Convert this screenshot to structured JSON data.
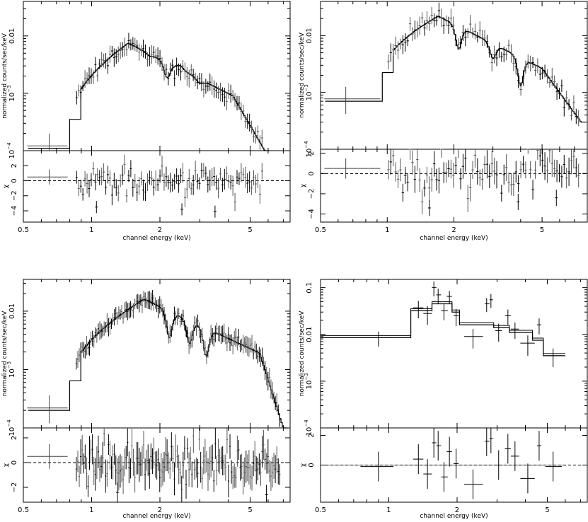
{
  "chart_data": [
    {
      "type": "scatter",
      "xscale": "log",
      "xlim": [
        0.5,
        7.5
      ],
      "top": {
        "ylabel": "normalized counts/sec/keV",
        "yscale": "log",
        "ylim": [
          0.0001,
          0.04
        ],
        "yticks": [
          {
            "v": 0.0001,
            "base": "10",
            "exp": "−4"
          },
          {
            "v": 0.001,
            "base": "10",
            "exp": "−3"
          },
          {
            "v": 0.01,
            "text": "0.01"
          }
        ]
      },
      "bottom": {
        "ylabel": "χ",
        "ylim": [
          -5.5,
          4
        ],
        "yticks": [
          {
            "v": 2,
            "text": "2"
          },
          {
            "v": 0,
            "text": "0"
          },
          {
            "v": -2,
            "text": "−2"
          },
          {
            "v": -4,
            "text": "−4"
          }
        ]
      },
      "xticks": [
        {
          "v": 0.5,
          "text": "0.5"
        },
        {
          "v": 1,
          "text": "1"
        },
        {
          "v": 2,
          "text": "2"
        },
        {
          "v": 5,
          "text": "5"
        }
      ],
      "xlabel": "channel energy (keV)",
      "shape": {
        "rise": 0.8,
        "peak": 1.45,
        "peakVal": 0.0075,
        "lowVal": 0.00011,
        "dropStart": 4.2,
        "dropEnd": 5.8,
        "endVal": 0.0001,
        "bumps": [
          {
            "e": 1.8,
            "f": 0.92
          },
          {
            "e": 2.15,
            "f": 0.55
          },
          {
            "e": 2.45,
            "f": 1.15
          },
          {
            "e": 3.0,
            "f": 0.85
          }
        ],
        "n": 90,
        "emin": 0.85,
        "emax": 5.7,
        "scatter": 0.15,
        "resid": 1.0,
        "outliers": [
          {
            "e": 1.05,
            "v": -3.5
          },
          {
            "e": 2.5,
            "v": -3.8
          },
          {
            "e": 3.5,
            "v": -4.1
          }
        ]
      }
    },
    {
      "type": "scatter",
      "xscale": "log",
      "xlim": [
        0.5,
        8.0
      ],
      "top": {
        "ylabel": "normalized counts/sec/keV",
        "yscale": "log",
        "ylim": [
          0.0001,
          0.04
        ],
        "yticks": [
          {
            "v": 0.0001,
            "base": "10",
            "exp": "−4"
          },
          {
            "v": 0.001,
            "base": "10",
            "exp": "−3"
          },
          {
            "v": 0.01,
            "text": "0.01"
          }
        ]
      },
      "bottom": {
        "ylabel": "χ",
        "ylim": [
          -4.8,
          2.4
        ],
        "yticks": [
          {
            "v": 2,
            "text": "2"
          },
          {
            "v": 0,
            "text": "0"
          },
          {
            "v": -2,
            "text": "−2"
          },
          {
            "v": -4,
            "text": "−4"
          }
        ]
      },
      "xticks": [
        {
          "v": 0.5,
          "text": "0.5"
        },
        {
          "v": 1,
          "text": "1"
        },
        {
          "v": 2,
          "text": "2"
        },
        {
          "v": 5,
          "text": "5"
        }
      ],
      "xlabel": "channel energy (keV)",
      "shape": {
        "rise": 0.95,
        "peak": 1.7,
        "peakVal": 0.022,
        "lowVal": 0.0007,
        "dropStart": 5.0,
        "dropEnd": 7.5,
        "endVal": 0.0003,
        "bumps": [
          {
            "e": 2.1,
            "f": 0.4
          },
          {
            "e": 3.0,
            "f": 0.55
          },
          {
            "e": 4.0,
            "f": 0.32
          }
        ],
        "n": 80,
        "emin": 1.0,
        "emax": 7.4,
        "scatter": 0.18,
        "resid": 1.1,
        "outliers": [
          {
            "e": 1.55,
            "v": -3.4
          },
          {
            "e": 3.9,
            "v": -2.8
          },
          {
            "e": 5.8,
            "v": -2.4
          }
        ]
      }
    },
    {
      "type": "scatter",
      "xscale": "log",
      "xlim": [
        0.5,
        7.5
      ],
      "top": {
        "ylabel": "normalized counts/sec/keV",
        "yscale": "log",
        "ylim": [
          0.0001,
          0.035
        ],
        "yticks": [
          {
            "v": 0.0001,
            "base": "10",
            "exp": "−4"
          },
          {
            "v": 0.001,
            "base": "10",
            "exp": "−3"
          },
          {
            "v": 0.01,
            "text": "0.01"
          }
        ]
      },
      "bottom": {
        "ylabel": "χ",
        "ylim": [
          -3.2,
          2.8
        ],
        "yticks": [
          {
            "v": 2,
            "text": "2"
          },
          {
            "v": 0,
            "text": "0"
          },
          {
            "v": -2,
            "text": "−2"
          }
        ]
      },
      "xticks": [
        {
          "v": 0.5,
          "text": "0.5"
        },
        {
          "v": 1,
          "text": "1"
        },
        {
          "v": 2,
          "text": "2"
        },
        {
          "v": 5,
          "text": "5"
        }
      ],
      "xlabel": "channel energy (keV)",
      "shape": {
        "rise": 0.8,
        "peak": 1.7,
        "peakVal": 0.016,
        "lowVal": 0.0002,
        "dropStart": 5.5,
        "dropEnd": 7.0,
        "endVal": 0.0001,
        "bumps": [
          {
            "e": 2.2,
            "f": 0.35
          },
          {
            "e": 2.7,
            "f": 0.4
          },
          {
            "e": 3.2,
            "f": 0.33
          }
        ],
        "n": 140,
        "emin": 0.85,
        "emax": 6.8,
        "scatter": 0.12,
        "resid": 0.9,
        "outliers": [
          {
            "e": 1.3,
            "v": -2.4
          },
          {
            "e": 5.9,
            "v": -2.6
          }
        ]
      }
    },
    {
      "type": "scatter",
      "xscale": "log",
      "xlim": [
        0.5,
        7.5
      ],
      "top": {
        "ylabel": "normalized counts/sec/keV",
        "yscale": "log",
        "ylim": [
          0.0001,
          0.15
        ],
        "yticks": [
          {
            "v": 0.0001,
            "base": "10",
            "exp": "−4"
          },
          {
            "v": 0.001,
            "base": "10",
            "exp": "−3"
          },
          {
            "v": 0.01,
            "text": "0.01"
          },
          {
            "v": 0.1,
            "text": "0.1"
          }
        ]
      },
      "bottom": {
        "ylabel": "χ",
        "ylim": [
          -2.5,
          2.5
        ],
        "yticks": [
          {
            "v": 2,
            "text": "2"
          },
          {
            "v": 0,
            "text": "0"
          }
        ]
      },
      "xticks": [
        {
          "v": 0.5,
          "text": "0.5"
        },
        {
          "v": 1,
          "text": "1"
        },
        {
          "v": 2,
          "text": "2"
        },
        {
          "v": 5,
          "text": "5"
        }
      ],
      "xlabel": "channel energy (keV)",
      "model": [
        {
          "e0": 0.5,
          "e1": 1.25,
          "v": 0.0085
        },
        {
          "e0": 1.25,
          "e1": 1.55,
          "v": 0.032
        },
        {
          "e0": 1.55,
          "e1": 1.9,
          "v": 0.045
        },
        {
          "e0": 1.9,
          "e1": 2.05,
          "v": 0.03
        },
        {
          "e0": 2.05,
          "e1": 2.9,
          "v": 0.016
        },
        {
          "e0": 2.9,
          "e1": 3.4,
          "v": 0.014
        },
        {
          "e0": 3.4,
          "e1": 4.3,
          "v": 0.011
        },
        {
          "e0": 4.3,
          "e1": 4.8,
          "v": 0.0075
        },
        {
          "e0": 4.8,
          "e1": 6.0,
          "v": 0.0035
        }
      ],
      "points": [
        {
          "e": 0.9,
          "e0": 0.75,
          "e1": 1.05,
          "v": 0.0085,
          "err": 0.003,
          "res": -0.1
        },
        {
          "e": 1.35,
          "e0": 1.28,
          "e1": 1.42,
          "v": 0.037,
          "err": 0.015,
          "res": 0.4
        },
        {
          "e": 1.48,
          "e0": 1.42,
          "e1": 1.55,
          "v": 0.028,
          "err": 0.012,
          "res": -0.6
        },
        {
          "e": 1.58,
          "e0": 1.55,
          "e1": 1.62,
          "v": 0.1,
          "err": 0.035,
          "res": 1.5
        },
        {
          "e": 1.65,
          "e0": 1.62,
          "e1": 1.7,
          "v": 0.07,
          "err": 0.025,
          "res": 1.3
        },
        {
          "e": 1.75,
          "e0": 1.7,
          "e1": 1.82,
          "v": 0.032,
          "err": 0.012,
          "res": -0.8
        },
        {
          "e": 1.85,
          "e0": 1.8,
          "e1": 1.9,
          "v": 0.065,
          "err": 0.02,
          "res": 0.9
        },
        {
          "e": 1.98,
          "e0": 1.93,
          "e1": 2.03,
          "v": 0.025,
          "err": 0.01,
          "res": 0.1
        },
        {
          "e": 2.35,
          "e0": 2.15,
          "e1": 2.6,
          "v": 0.009,
          "err": 0.004,
          "res": -1.3
        },
        {
          "e": 2.7,
          "e0": 2.65,
          "e1": 2.78,
          "v": 0.045,
          "err": 0.015,
          "res": 1.6
        },
        {
          "e": 2.82,
          "e0": 2.78,
          "e1": 2.88,
          "v": 0.055,
          "err": 0.018,
          "res": 1.8
        },
        {
          "e": 3.05,
          "e0": 2.95,
          "e1": 3.15,
          "v": 0.012,
          "err": 0.005,
          "res": 0.0
        },
        {
          "e": 3.35,
          "e0": 3.25,
          "e1": 3.45,
          "v": 0.025,
          "err": 0.009,
          "res": 1.1
        },
        {
          "e": 3.6,
          "e0": 3.45,
          "e1": 3.75,
          "v": 0.013,
          "err": 0.005,
          "res": 0.6
        },
        {
          "e": 4.1,
          "e0": 3.8,
          "e1": 4.4,
          "v": 0.0065,
          "err": 0.003,
          "res": -0.9
        },
        {
          "e": 4.6,
          "e0": 4.5,
          "e1": 4.7,
          "v": 0.016,
          "err": 0.006,
          "res": 1.3
        },
        {
          "e": 5.3,
          "e0": 4.9,
          "e1": 5.8,
          "v": 0.0035,
          "err": 0.0015,
          "res": -0.1
        }
      ]
    }
  ]
}
